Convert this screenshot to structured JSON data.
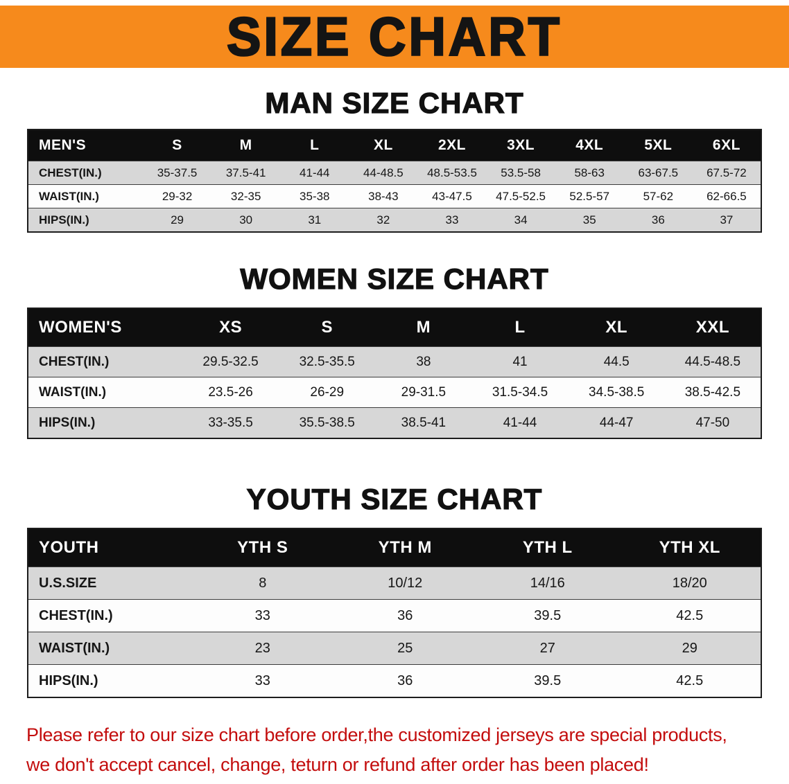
{
  "banner": {
    "title": "SIZE CHART"
  },
  "sections": [
    {
      "heading": "MAN SIZE CHART",
      "table": {
        "header": [
          "MEN'S",
          "S",
          "M",
          "L",
          "XL",
          "2XL",
          "3XL",
          "4XL",
          "5XL",
          "6XL"
        ],
        "rows": [
          [
            "CHEST(IN.)",
            "35-37.5",
            "37.5-41",
            "41-44",
            "44-48.5",
            "48.5-53.5",
            "53.5-58",
            "58-63",
            "63-67.5",
            "67.5-72"
          ],
          [
            "WAIST(IN.)",
            "29-32",
            "32-35",
            "35-38",
            "38-43",
            "43-47.5",
            "47.5-52.5",
            "52.5-57",
            "57-62",
            "62-66.5"
          ],
          [
            "HIPS(IN.)",
            "29",
            "30",
            "31",
            "32",
            "33",
            "34",
            "35",
            "36",
            "37"
          ]
        ]
      }
    },
    {
      "heading": "WOMEN SIZE CHART",
      "table": {
        "header": [
          "WOMEN'S",
          "XS",
          "S",
          "M",
          "L",
          "XL",
          "XXL"
        ],
        "rows": [
          [
            "CHEST(IN.)",
            "29.5-32.5",
            "32.5-35.5",
            "38",
            "41",
            "44.5",
            "44.5-48.5"
          ],
          [
            "WAIST(IN.)",
            "23.5-26",
            "26-29",
            "29-31.5",
            "31.5-34.5",
            "34.5-38.5",
            "38.5-42.5"
          ],
          [
            "HIPS(IN.)",
            "33-35.5",
            "35.5-38.5",
            "38.5-41",
            "41-44",
            "44-47",
            "47-50"
          ]
        ]
      }
    },
    {
      "heading": "YOUTH SIZE CHART",
      "table": {
        "header": [
          "YOUTH",
          "YTH S",
          "YTH M",
          "YTH L",
          "YTH XL"
        ],
        "rows": [
          [
            "U.S.SIZE",
            "8",
            "10/12",
            "14/16",
            "18/20"
          ],
          [
            "CHEST(IN.)",
            "33",
            "36",
            "39.5",
            "42.5"
          ],
          [
            "WAIST(IN.)",
            "23",
            "25",
            "27",
            "29"
          ],
          [
            "HIPS(IN.)",
            "33",
            "36",
            "39.5",
            "42.5"
          ]
        ]
      }
    }
  ],
  "footer": {
    "line1": "Please refer to our size chart before order,the customized jerseys are special products,",
    "line2": "we don't accept cancel, change, teturn or refund after order has been placed!"
  },
  "colors": {
    "banner_orange": "#f68a1c",
    "header_black": "#0e0e0e",
    "row_gray": "#d7d7d7",
    "footer_red": "#c30d0d"
  }
}
